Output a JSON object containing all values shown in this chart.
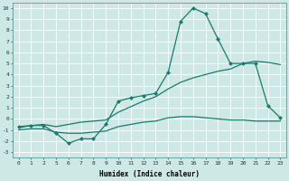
{
  "xlabel": "Humidex (Indice chaleur)",
  "bg_color": "#cde8e5",
  "grid_color": "#ffffff",
  "line_color": "#1a7a6e",
  "xtick_labels": [
    "0",
    "1",
    "2",
    "5",
    "6",
    "7",
    "8",
    "9",
    "10",
    "11",
    "12",
    "13",
    "14",
    "15",
    "16",
    "17",
    "18",
    "19",
    "20",
    "21",
    "22",
    "23"
  ],
  "yticks": [
    -3,
    -2,
    -1,
    0,
    1,
    2,
    3,
    4,
    5,
    6,
    7,
    8,
    9,
    10
  ],
  "ylim": [
    -3.5,
    10.5
  ],
  "curve1_y": [
    -0.7,
    -0.6,
    -0.6,
    -1.3,
    -2.2,
    -1.8,
    -1.8,
    -0.5,
    1.6,
    1.9,
    2.1,
    2.3,
    4.2,
    8.8,
    10.0,
    9.5,
    7.2,
    5.0,
    5.0,
    5.0,
    1.2,
    0.1
  ],
  "curve2_y": [
    -0.8,
    -0.6,
    -0.5,
    -0.7,
    -0.5,
    -0.3,
    -0.2,
    -0.1,
    0.6,
    1.1,
    1.6,
    2.0,
    2.7,
    3.3,
    3.7,
    4.0,
    4.3,
    4.5,
    5.0,
    5.2,
    5.1,
    4.9
  ],
  "curve3_y": [
    -1.0,
    -0.9,
    -0.9,
    -1.2,
    -1.3,
    -1.3,
    -1.2,
    -1.1,
    -0.7,
    -0.5,
    -0.3,
    -0.2,
    0.1,
    0.2,
    0.2,
    0.1,
    0.0,
    -0.1,
    -0.1,
    -0.2,
    -0.2,
    -0.2
  ],
  "marker_size": 2.5,
  "linewidth": 0.9,
  "tick_fontsize": 4.5,
  "xlabel_fontsize": 5.5
}
